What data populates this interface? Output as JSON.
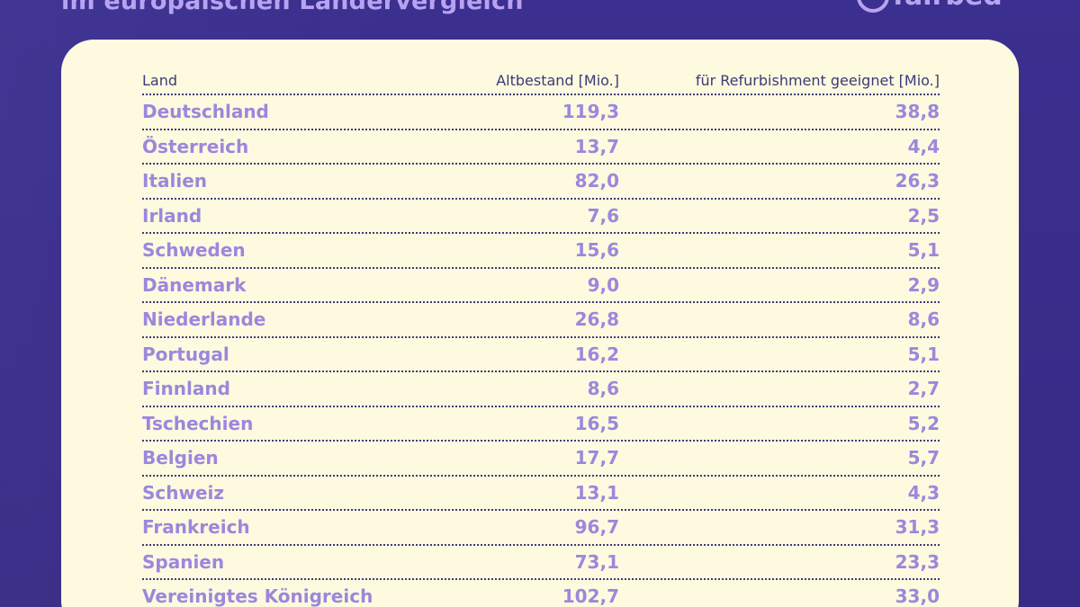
{
  "header": {
    "title": "im europäischen Ländervergleich",
    "logo_text": "fairbed",
    "logo_icon": "circle-logo-icon"
  },
  "table": {
    "columns": [
      "Land",
      "Altbestand [Mio.]",
      "für Refurbishment geeignet [Mio.]"
    ],
    "rows": [
      {
        "land": "Deutschland",
        "alt": "119,3",
        "ref": "38,8"
      },
      {
        "land": "Österreich",
        "alt": "13,7",
        "ref": "4,4"
      },
      {
        "land": "Italien",
        "alt": "82,0",
        "ref": "26,3"
      },
      {
        "land": "Irland",
        "alt": "7,6",
        "ref": "2,5"
      },
      {
        "land": "Schweden",
        "alt": "15,6",
        "ref": "5,1"
      },
      {
        "land": "Dänemark",
        "alt": "9,0",
        "ref": "2,9"
      },
      {
        "land": "Niederlande",
        "alt": "26,8",
        "ref": "8,6"
      },
      {
        "land": "Portugal",
        "alt": "16,2",
        "ref": "5,1"
      },
      {
        "land": "Finnland",
        "alt": "8,6",
        "ref": "2,7"
      },
      {
        "land": "Tschechien",
        "alt": "16,5",
        "ref": "5,2"
      },
      {
        "land": "Belgien",
        "alt": "17,7",
        "ref": "5,7"
      },
      {
        "land": "Schweiz",
        "alt": "13,1",
        "ref": "4,3"
      },
      {
        "land": "Frankreich",
        "alt": "96,7",
        "ref": "31,3"
      },
      {
        "land": "Spanien",
        "alt": "73,1",
        "ref": "23,3"
      },
      {
        "land": "Vereinigtes Königreich",
        "alt": "102,7",
        "ref": "33,0"
      }
    ]
  },
  "colors": {
    "background": "#3a2e8c",
    "card": "#fdfadf",
    "accent": "#9c87dd",
    "header_text": "#3d3a78"
  }
}
